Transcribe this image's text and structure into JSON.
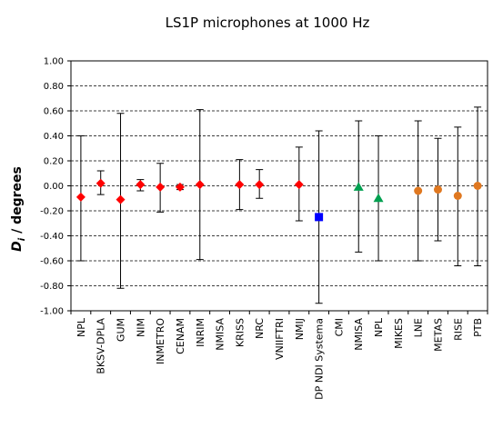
{
  "chart_data": {
    "type": "scatter",
    "title": "LS1P microphones at 1000 Hz",
    "ylabel": "D_i / degrees",
    "ylabel_main": "D",
    "ylabel_sub": "i",
    "ylabel_rest": " / degrees",
    "ylim": [
      -1.0,
      1.0
    ],
    "yticks": [
      1.0,
      0.8,
      0.6,
      0.4,
      0.2,
      0.0,
      -0.2,
      -0.4,
      -0.6,
      -0.8,
      -1.0
    ],
    "ytick_labels": [
      "1.00",
      "0.80",
      "0.60",
      "0.40",
      "0.20",
      "0.00",
      "-0.20",
      "-0.40",
      "-0.60",
      "-0.80",
      "-1.00"
    ],
    "grid": "horizontal dashed",
    "categories": [
      "NPL",
      "BKSV-DPLA",
      "GUM",
      "NIM",
      "INMETRO",
      "CENAM",
      "INRIM",
      "NMISA",
      "KRISS",
      "NRC",
      "VNIIFTRI",
      "NMIJ",
      "DP NDI Systema",
      "CMI",
      "NMISA",
      "NPL",
      "MIKES",
      "LNE",
      "METAS",
      "RISE",
      "PTB"
    ],
    "series": [
      {
        "marker": "diamond",
        "color": "#ff0000",
        "points": [
          {
            "index": 0,
            "y": -0.09,
            "err_low": -0.6,
            "err_high": 0.4
          },
          {
            "index": 1,
            "y": 0.02,
            "err_low": -0.07,
            "err_high": 0.12
          },
          {
            "index": 2,
            "y": -0.11,
            "err_low": -0.82,
            "err_high": 0.58
          },
          {
            "index": 3,
            "y": 0.01,
            "err_low": -0.04,
            "err_high": 0.05
          },
          {
            "index": 4,
            "y": -0.01,
            "err_low": -0.21,
            "err_high": 0.18
          },
          {
            "index": 5,
            "y": -0.01,
            "err_low": -0.03,
            "err_high": 0.01
          },
          {
            "index": 6,
            "y": 0.01,
            "err_low": -0.59,
            "err_high": 0.61
          },
          {
            "index": 8,
            "y": 0.01,
            "err_low": -0.19,
            "err_high": 0.21
          },
          {
            "index": 9,
            "y": 0.01,
            "err_low": -0.1,
            "err_high": 0.13
          },
          {
            "index": 11,
            "y": 0.01,
            "err_low": -0.28,
            "err_high": 0.31
          }
        ]
      },
      {
        "marker": "square",
        "color": "#0000ff",
        "points": [
          {
            "index": 12,
            "y": -0.25,
            "err_low": -0.94,
            "err_high": 0.44
          }
        ]
      },
      {
        "marker": "triangle",
        "color": "#00a050",
        "points": [
          {
            "index": 14,
            "y": -0.01,
            "err_low": -0.53,
            "err_high": 0.52
          },
          {
            "index": 15,
            "y": -0.1,
            "err_low": -0.6,
            "err_high": 0.4
          }
        ]
      },
      {
        "marker": "circle",
        "color": "#e07820",
        "points": [
          {
            "index": 17,
            "y": -0.04,
            "err_low": -0.6,
            "err_high": 0.52
          },
          {
            "index": 18,
            "y": -0.03,
            "err_low": -0.44,
            "err_high": 0.38
          },
          {
            "index": 19,
            "y": -0.08,
            "err_low": -0.64,
            "err_high": 0.47
          },
          {
            "index": 20,
            "y": 0.0,
            "err_low": -0.64,
            "err_high": 0.63
          }
        ]
      }
    ]
  }
}
